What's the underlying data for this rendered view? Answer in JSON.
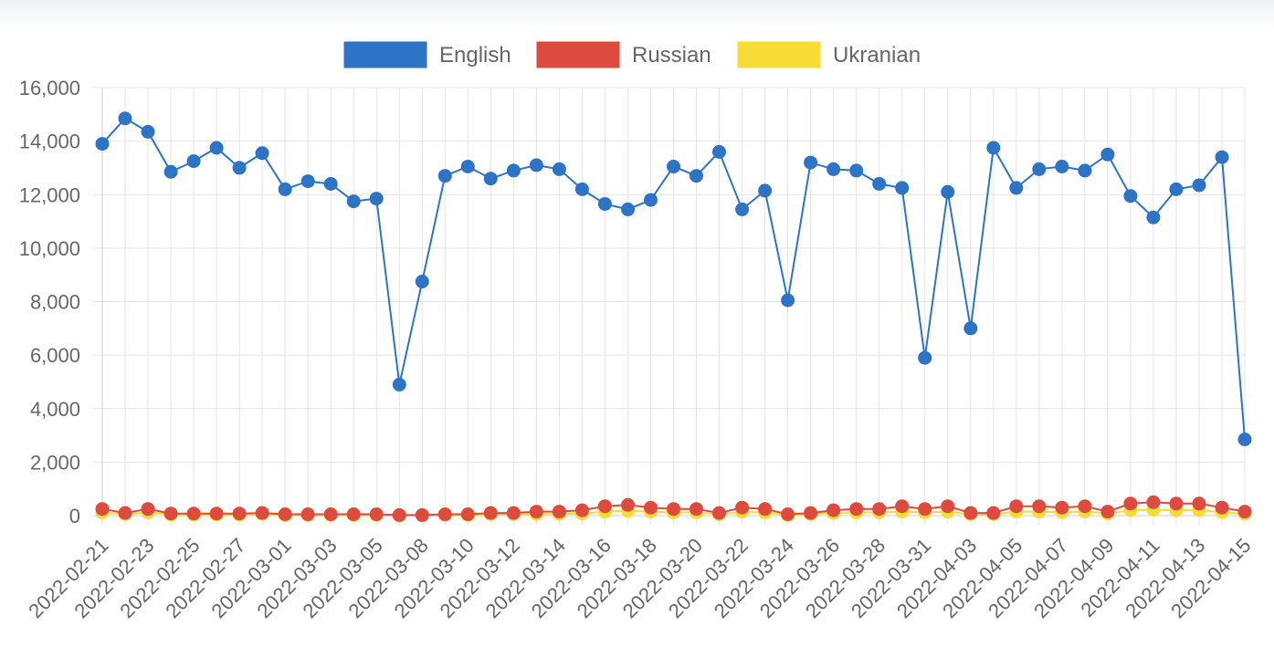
{
  "chart_data": {
    "type": "line",
    "title": "",
    "xlabel": "",
    "ylabel": "",
    "ylim": [
      0,
      16000
    ],
    "y_ticks": [
      "16,000",
      "14,000",
      "12,000",
      "10,000",
      "8,000",
      "6,000",
      "4,000",
      "2,000",
      "0"
    ],
    "x_tick_labels": [
      "2022-02-21",
      "2022-02-23",
      "2022-02-25",
      "2022-02-27",
      "2022-03-01",
      "2022-03-03",
      "2022-03-05",
      "2022-03-08",
      "2022-03-10",
      "2022-03-12",
      "2022-03-14",
      "2022-03-16",
      "2022-03-18",
      "2022-03-20",
      "2022-03-22",
      "2022-03-24",
      "2022-03-26",
      "2022-03-28",
      "2022-03-31",
      "2022-04-03",
      "2022-04-05",
      "2022-04-07",
      "2022-04-09",
      "2022-04-11",
      "2022-04-13",
      "2022-04-15"
    ],
    "grid": true,
    "legend_position": "top-center",
    "x": [
      "2022-02-21",
      "2022-02-22",
      "2022-02-23",
      "2022-02-24",
      "2022-02-25",
      "2022-02-26",
      "2022-02-27",
      "2022-02-28",
      "2022-03-01",
      "2022-03-02",
      "2022-03-03",
      "2022-03-04",
      "2022-03-05",
      "2022-03-06",
      "2022-03-08",
      "2022-03-09",
      "2022-03-10",
      "2022-03-11",
      "2022-03-12",
      "2022-03-13",
      "2022-03-14",
      "2022-03-15",
      "2022-03-16",
      "2022-03-17",
      "2022-03-18",
      "2022-03-19",
      "2022-03-20",
      "2022-03-21",
      "2022-03-22",
      "2022-03-23",
      "2022-03-24",
      "2022-03-25",
      "2022-03-26",
      "2022-03-27",
      "2022-03-28",
      "2022-03-29",
      "2022-03-31",
      "2022-04-01",
      "2022-04-03",
      "2022-04-04",
      "2022-04-05",
      "2022-04-06",
      "2022-04-07",
      "2022-04-08",
      "2022-04-09",
      "2022-04-10",
      "2022-04-11",
      "2022-04-12",
      "2022-04-13",
      "2022-04-14",
      "2022-04-15"
    ],
    "series": [
      {
        "name": "English",
        "color": "#2d73c6",
        "values": [
          13900,
          14850,
          14350,
          12850,
          13250,
          13750,
          13000,
          13550,
          12200,
          12500,
          12400,
          11750,
          11850,
          4900,
          8750,
          12700,
          13050,
          12600,
          12900,
          13100,
          12950,
          12200,
          11650,
          11450,
          11800,
          13050,
          12700,
          13600,
          11450,
          12150,
          8050,
          13200,
          12950,
          12900,
          12400,
          12250,
          5900,
          12100,
          7000,
          13750,
          12250,
          12950,
          13050,
          12900,
          13500,
          11950,
          11150,
          12200,
          12350,
          13400,
          2850
        ]
      },
      {
        "name": "Russian",
        "color": "#dd4b3e",
        "values": [
          250,
          100,
          250,
          80,
          80,
          80,
          80,
          100,
          50,
          50,
          50,
          50,
          50,
          20,
          20,
          50,
          50,
          100,
          100,
          150,
          150,
          200,
          350,
          400,
          300,
          250,
          250,
          100,
          300,
          250,
          50,
          100,
          200,
          250,
          250,
          350,
          250,
          350,
          100,
          100,
          350,
          350,
          300,
          350,
          150,
          450,
          500,
          450,
          450,
          300,
          150
        ]
      },
      {
        "name": "Ukranian",
        "color": "#f9db35",
        "values": [
          120,
          60,
          120,
          40,
          40,
          40,
          40,
          60,
          20,
          20,
          20,
          20,
          20,
          10,
          10,
          20,
          20,
          50,
          50,
          60,
          60,
          80,
          150,
          180,
          150,
          120,
          120,
          50,
          140,
          120,
          20,
          50,
          100,
          120,
          120,
          150,
          120,
          150,
          50,
          50,
          150,
          150,
          130,
          150,
          80,
          200,
          220,
          200,
          200,
          130,
          70
        ]
      }
    ]
  }
}
